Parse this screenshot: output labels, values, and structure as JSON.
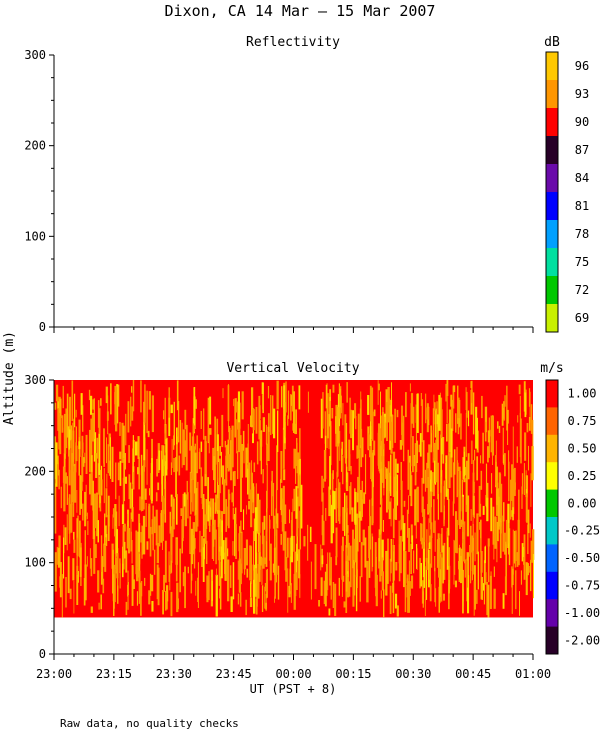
{
  "title": "Dixon, CA 14 Mar — 15 Mar 2007",
  "footnote": "Raw data, no quality checks",
  "shared_ylabel": "Altitude (m)",
  "xlabel": "UT  (PST + 8)",
  "x_tick_labels": [
    "23:00",
    "23:15",
    "23:30",
    "23:45",
    "00:00",
    "00:15",
    "00:30",
    "00:45",
    "01:00"
  ],
  "chart_data": [
    {
      "type": "heatmap",
      "title": "Reflectivity",
      "ylabel": "",
      "ylim": [
        0,
        300
      ],
      "y_ticks": [
        0,
        100,
        200,
        300
      ],
      "x_range": [
        "23:00",
        "01:00"
      ],
      "data_present": false,
      "colorbar": {
        "unit": "dB",
        "labels": [
          "96",
          "93",
          "90",
          "87",
          "84",
          "81",
          "78",
          "75",
          "72",
          "69"
        ],
        "colors": [
          "#ffc800",
          "#ff9600",
          "#ff0000",
          "#280028",
          "#6a0aaa",
          "#0000ff",
          "#00a0ff",
          "#00e0a0",
          "#00c800",
          "#c8f000"
        ]
      }
    },
    {
      "type": "heatmap",
      "title": "Vertical Velocity",
      "ylabel": "",
      "ylim": [
        0,
        300
      ],
      "y_ticks": [
        0,
        100,
        200,
        300
      ],
      "x_range": [
        "23:00",
        "01:00"
      ],
      "data_present": true,
      "data_altitude_range": [
        40,
        300
      ],
      "dominant_values": [
        1.0,
        0.75
      ],
      "colorbar": {
        "unit": "m/s",
        "labels": [
          "1.00",
          "0.75",
          "0.50",
          "0.25",
          "0.00",
          "-0.25",
          "-0.50",
          "-0.75",
          "-1.00",
          "-2.00"
        ],
        "colors": [
          "#ff0000",
          "#ff6400",
          "#ffb400",
          "#ffff00",
          "#00c800",
          "#00c8c8",
          "#0064ff",
          "#0000ff",
          "#6400aa",
          "#280028"
        ]
      }
    }
  ]
}
